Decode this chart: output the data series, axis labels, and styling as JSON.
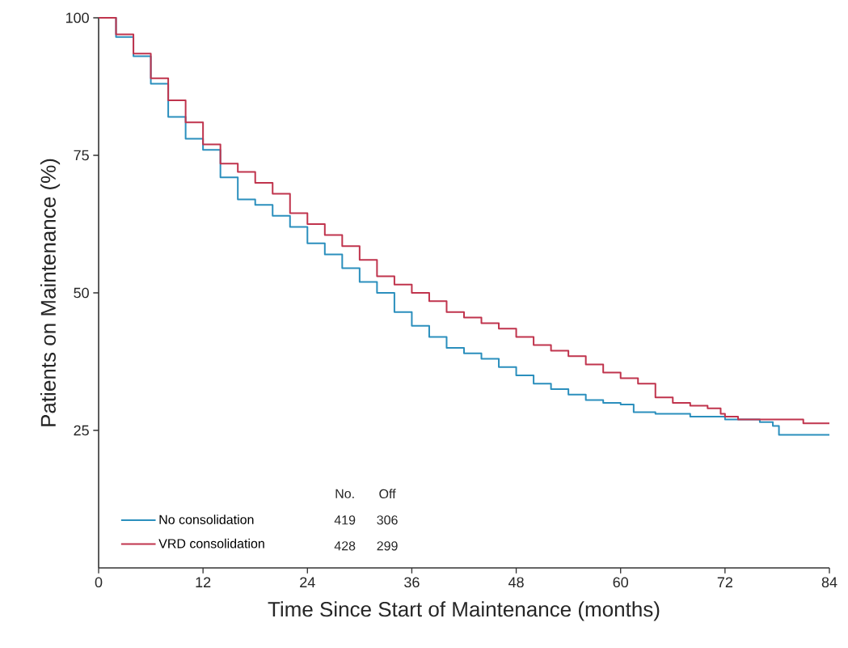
{
  "chart_data": {
    "type": "step",
    "xlabel": "Time Since Start of Maintenance (months)",
    "ylabel": "Patients on Maintenance (%)",
    "xlim": [
      0,
      84
    ],
    "ylim": [
      0,
      100
    ],
    "xticks": [
      0,
      12,
      24,
      36,
      48,
      60,
      72,
      84
    ],
    "yticks": [
      25,
      50,
      75,
      100
    ],
    "legend": "bottom left",
    "grid": false,
    "annotations": [
      "No.",
      "Off",
      "419",
      "306",
      "428",
      "299"
    ],
    "series": [
      {
        "name": "No consolidation",
        "color": "#2b8fbd",
        "x": [
          0,
          2,
          4,
          6,
          8,
          10,
          12,
          14,
          16,
          18,
          20,
          22,
          24,
          26,
          28,
          30,
          32,
          34,
          36,
          38,
          40,
          42,
          44,
          46,
          48,
          50,
          52,
          54,
          56,
          58,
          60,
          61.5,
          64,
          68,
          72,
          76,
          77.5,
          78.2,
          84
        ],
        "values": [
          100,
          96.5,
          93,
          88,
          82,
          78,
          76,
          71,
          67,
          66,
          64,
          62,
          59,
          57,
          54.5,
          52,
          50,
          46.5,
          44,
          42,
          40,
          39,
          38,
          36.5,
          35,
          33.5,
          32.5,
          31.5,
          30.5,
          30,
          29.7,
          28.3,
          28,
          27.5,
          27,
          26.5,
          25.8,
          24.2,
          24.2
        ]
      },
      {
        "name": "VRD consolidation",
        "color": "#c0344d",
        "x": [
          0,
          2,
          4,
          6,
          8,
          10,
          12,
          14,
          16,
          18,
          20,
          22,
          24,
          26,
          28,
          30,
          32,
          34,
          36,
          38,
          40,
          42,
          44,
          46,
          48,
          50,
          52,
          54,
          56,
          58,
          60,
          62,
          64,
          66,
          68,
          70,
          71.5,
          72,
          73.5,
          80.5,
          81,
          84
        ],
        "values": [
          100,
          97,
          93.5,
          89,
          85,
          81,
          77,
          73.5,
          72,
          70,
          68,
          64.5,
          62.5,
          60.5,
          58.5,
          56,
          53,
          51.5,
          50,
          48.5,
          46.5,
          45.5,
          44.5,
          43.5,
          42,
          40.5,
          39.5,
          38.5,
          37,
          35.5,
          34.5,
          33.5,
          31,
          30,
          29.5,
          29,
          28,
          27.5,
          27,
          27,
          26.3,
          26.3
        ]
      }
    ]
  }
}
